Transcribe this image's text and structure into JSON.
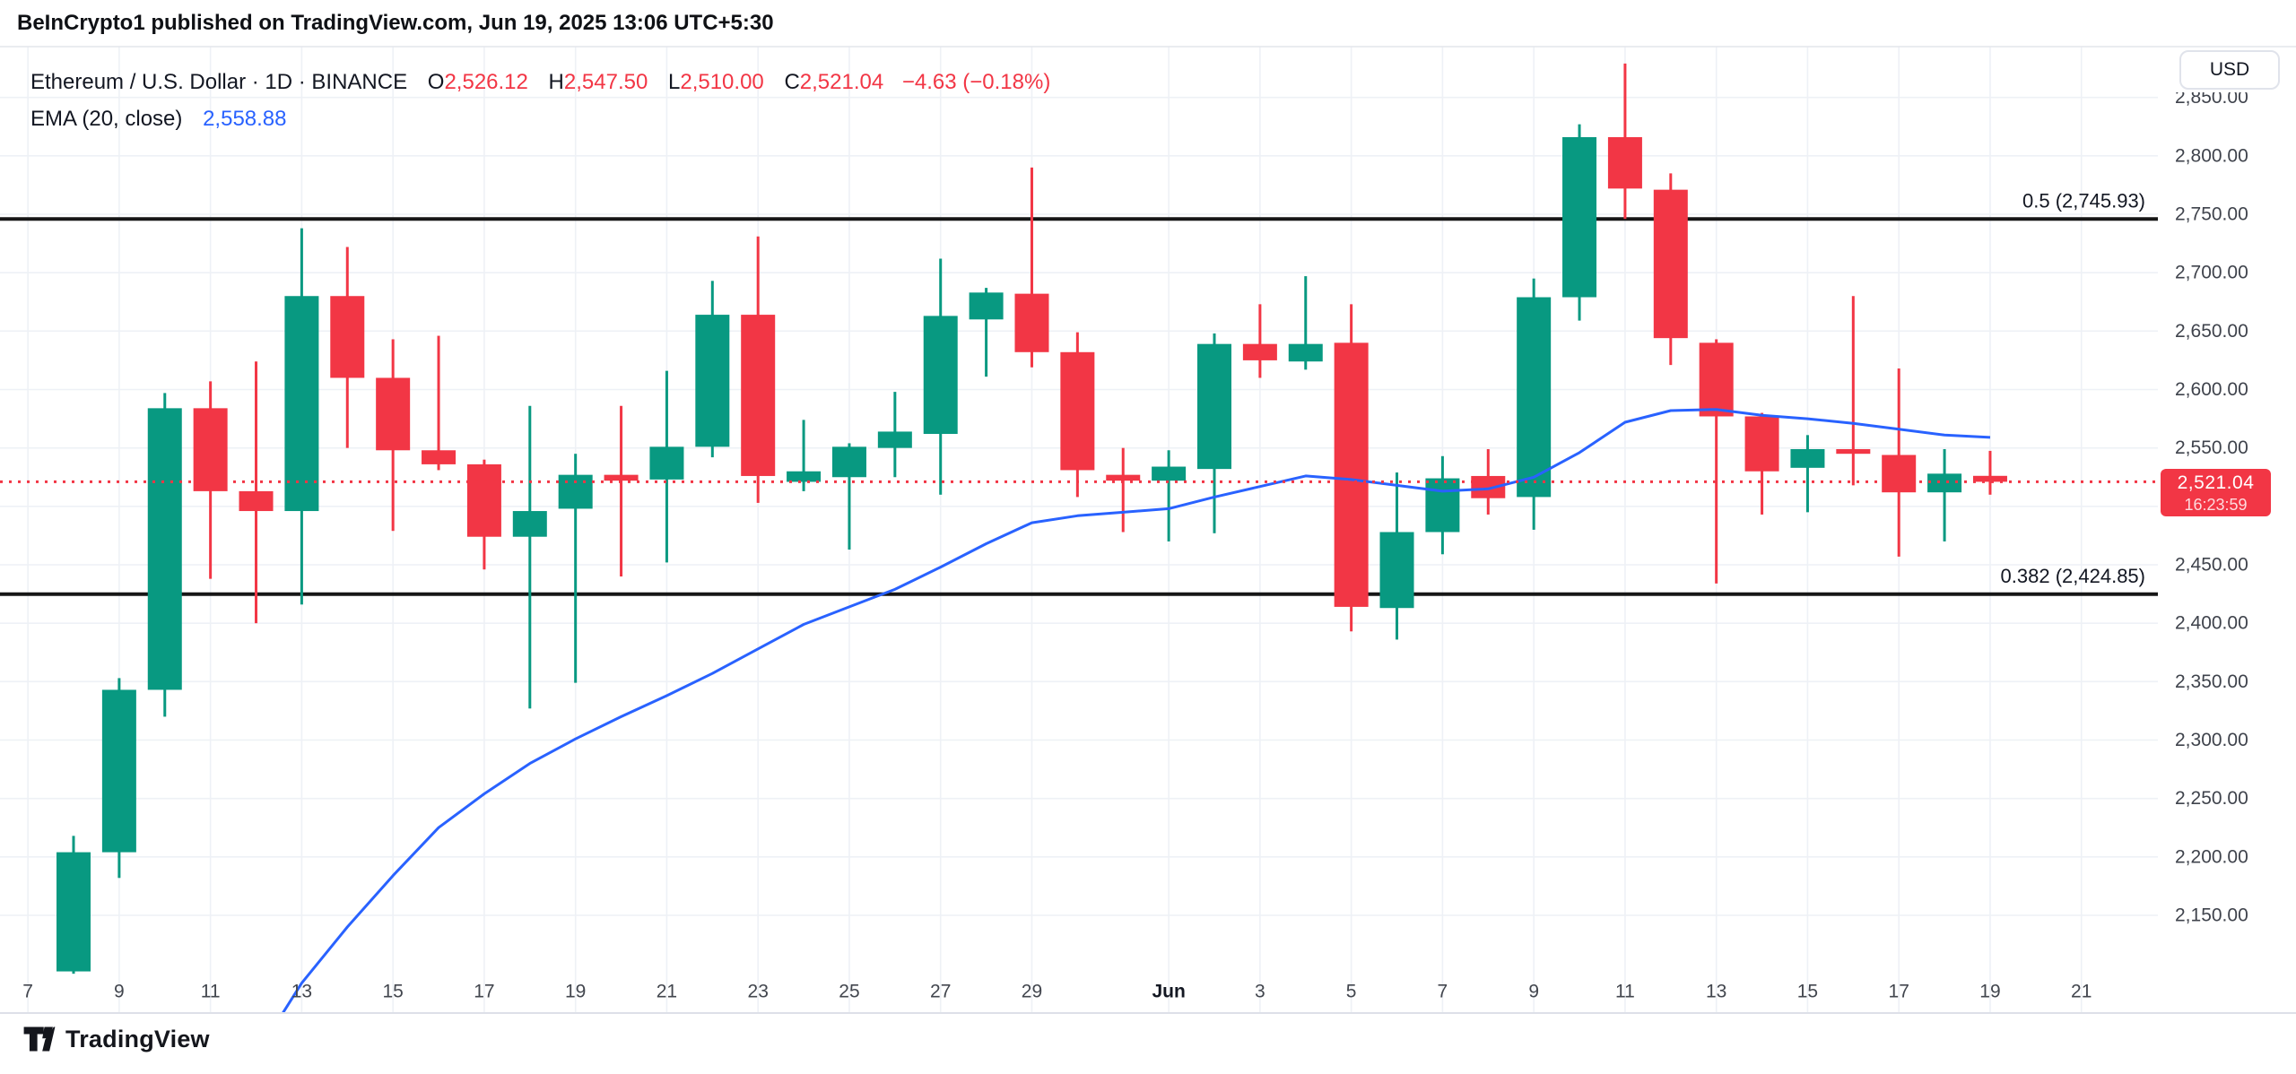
{
  "title_bar": {
    "text": "BeInCrypto1 published on TradingView.com, Jun 19, 2025 13:06 UTC+5:30"
  },
  "legend": {
    "symbol_line": "Ethereum / U.S. Dollar · 1D · BINANCE",
    "ohlc": {
      "open_label": "O",
      "open": "2,526.12",
      "high_label": "H",
      "high": "2,547.50",
      "low_label": "L",
      "low": "2,510.00",
      "close_label": "C",
      "close": "2,521.04",
      "change": "−4.63 (−0.18%)"
    },
    "indicator_label": "EMA (20, close)",
    "indicator_value": "2,558.88"
  },
  "price_axis": {
    "currency_label": "USD",
    "clipped_top_tick": {
      "value": 2850,
      "text": "2,850.00"
    },
    "tick_labels": [
      {
        "value": 2800,
        "text": "2,800.00"
      },
      {
        "value": 2750,
        "text": "2,750.00"
      },
      {
        "value": 2700,
        "text": "2,700.00"
      },
      {
        "value": 2650,
        "text": "2,650.00"
      },
      {
        "value": 2600,
        "text": "2,600.00"
      },
      {
        "value": 2550,
        "text": "2,550.00"
      },
      {
        "value": 2450,
        "text": "2,450.00"
      },
      {
        "value": 2400,
        "text": "2,400.00"
      },
      {
        "value": 2350,
        "text": "2,350.00"
      },
      {
        "value": 2300,
        "text": "2,300.00"
      },
      {
        "value": 2250,
        "text": "2,250.00"
      },
      {
        "value": 2200,
        "text": "2,200.00"
      },
      {
        "value": 2150,
        "text": "2,150.00"
      }
    ],
    "badge": {
      "price": "2,521.04",
      "countdown": "16:23:59"
    }
  },
  "time_axis": {
    "labels": [
      {
        "text": "7",
        "slot": -1
      },
      {
        "text": "9",
        "slot": 1
      },
      {
        "text": "11",
        "slot": 3
      },
      {
        "text": "13",
        "slot": 5
      },
      {
        "text": "15",
        "slot": 7
      },
      {
        "text": "17",
        "slot": 9
      },
      {
        "text": "19",
        "slot": 11
      },
      {
        "text": "21",
        "slot": 13
      },
      {
        "text": "23",
        "slot": 15
      },
      {
        "text": "25",
        "slot": 17
      },
      {
        "text": "27",
        "slot": 19
      },
      {
        "text": "29",
        "slot": 21
      },
      {
        "text": "Jun",
        "slot": 24,
        "bold": true
      },
      {
        "text": "3",
        "slot": 26
      },
      {
        "text": "5",
        "slot": 28
      },
      {
        "text": "7",
        "slot": 30
      },
      {
        "text": "9",
        "slot": 32
      },
      {
        "text": "11",
        "slot": 34
      },
      {
        "text": "13",
        "slot": 36
      },
      {
        "text": "15",
        "slot": 38
      },
      {
        "text": "17",
        "slot": 40
      },
      {
        "text": "19",
        "slot": 42
      },
      {
        "text": "21",
        "slot": 44
      }
    ]
  },
  "footer": {
    "brand": "TradingView"
  },
  "colors": {
    "up": "#089981",
    "down": "#f23645",
    "ema": "#2962ff",
    "fib_line": "#161616",
    "fib_text": "#131722",
    "grid": "#eef1f6",
    "axis_text": "#3f434c",
    "badge_bg": "#f23645",
    "last_price_line": "#f23645",
    "divider": "#e3e6ec"
  },
  "chart_data": {
    "type": "candlestick",
    "title": "Ethereum / U.S. Dollar · 1D · BINANCE",
    "x": [
      "May 8",
      "May 9",
      "May 10",
      "May 11",
      "May 12",
      "May 13",
      "May 14",
      "May 15",
      "May 16",
      "May 17",
      "May 18",
      "May 19",
      "May 20",
      "May 21",
      "May 22",
      "May 23",
      "May 24",
      "May 25",
      "May 26",
      "May 27",
      "May 28",
      "May 29",
      "May 30",
      "May 31",
      "Jun 1",
      "Jun 2",
      "Jun 3",
      "Jun 4",
      "Jun 5",
      "Jun 6",
      "Jun 7",
      "Jun 8",
      "Jun 9",
      "Jun 10",
      "Jun 11",
      "Jun 12",
      "Jun 13",
      "Jun 14",
      "Jun 15",
      "Jun 16",
      "Jun 17",
      "Jun 18",
      "Jun 19"
    ],
    "series": [
      {
        "name": "ETH/USD 1D OHLC",
        "ohlc": [
          [
            2102,
            2218,
            2100,
            2204
          ],
          [
            2204,
            2353,
            2182,
            2343
          ],
          [
            2343,
            2597,
            2320,
            2584
          ],
          [
            2584,
            2607,
            2438,
            2513
          ],
          [
            2513,
            2624,
            2400,
            2496
          ],
          [
            2496,
            2738,
            2416,
            2680
          ],
          [
            2680,
            2722,
            2550,
            2610
          ],
          [
            2610,
            2643,
            2479,
            2548
          ],
          [
            2548,
            2646,
            2531,
            2536
          ],
          [
            2536,
            2540,
            2446,
            2474
          ],
          [
            2474,
            2586,
            2327,
            2496
          ],
          [
            2498,
            2545,
            2349,
            2527
          ],
          [
            2527,
            2586,
            2440,
            2522
          ],
          [
            2523,
            2616,
            2452,
            2551
          ],
          [
            2551,
            2693,
            2542,
            2664
          ],
          [
            2664,
            2731,
            2503,
            2526
          ],
          [
            2521,
            2574,
            2513,
            2530
          ],
          [
            2525,
            2554,
            2463,
            2551
          ],
          [
            2550,
            2598,
            2525,
            2564
          ],
          [
            2562,
            2712,
            2510,
            2663
          ],
          [
            2660,
            2687,
            2611,
            2683
          ],
          [
            2682,
            2790,
            2619,
            2632
          ],
          [
            2632,
            2649,
            2508,
            2531
          ],
          [
            2527,
            2550,
            2478,
            2522
          ],
          [
            2522,
            2548,
            2470,
            2534
          ],
          [
            2532,
            2648,
            2477,
            2639
          ],
          [
            2639,
            2673,
            2610,
            2625
          ],
          [
            2624,
            2697,
            2617,
            2639
          ],
          [
            2640,
            2673,
            2393,
            2414
          ],
          [
            2413,
            2529,
            2386,
            2478
          ],
          [
            2478,
            2543,
            2459,
            2524
          ],
          [
            2526,
            2549,
            2493,
            2507
          ],
          [
            2508,
            2695,
            2480,
            2679
          ],
          [
            2679,
            2827,
            2659,
            2816
          ],
          [
            2816,
            2879,
            2746,
            2772
          ],
          [
            2771,
            2785,
            2621,
            2644
          ],
          [
            2640,
            2643,
            2434,
            2577
          ],
          [
            2577,
            2580,
            2493,
            2530
          ],
          [
            2533,
            2561,
            2495,
            2549
          ],
          [
            2549,
            2680,
            2518,
            2545
          ],
          [
            2544,
            2618,
            2457,
            2512
          ],
          [
            2512,
            2549,
            2470,
            2528
          ],
          [
            2526.12,
            2547.5,
            2510,
            2521.04
          ]
        ]
      },
      {
        "name": "EMA (20, close)",
        "value": 2558.88,
        "points": [
          [
            4,
            2030
          ],
          [
            5,
            2092
          ],
          [
            6,
            2140
          ],
          [
            7,
            2184
          ],
          [
            8,
            2225
          ],
          [
            9,
            2254
          ],
          [
            10,
            2280
          ],
          [
            11,
            2301
          ],
          [
            12,
            2320
          ],
          [
            13,
            2338
          ],
          [
            14,
            2357
          ],
          [
            15,
            2378
          ],
          [
            16,
            2399
          ],
          [
            17,
            2414
          ],
          [
            18,
            2429
          ],
          [
            19,
            2448
          ],
          [
            20,
            2468
          ],
          [
            21,
            2486
          ],
          [
            22,
            2492
          ],
          [
            23,
            2495
          ],
          [
            24,
            2498
          ],
          [
            25,
            2508
          ],
          [
            26,
            2517
          ],
          [
            27,
            2526
          ],
          [
            28,
            2523
          ],
          [
            29,
            2518
          ],
          [
            30,
            2513
          ],
          [
            31,
            2515
          ],
          [
            32,
            2525
          ],
          [
            33,
            2546
          ],
          [
            34,
            2572
          ],
          [
            35,
            2582
          ],
          [
            36,
            2583
          ],
          [
            37,
            2578
          ],
          [
            38,
            2575
          ],
          [
            39,
            2571
          ],
          [
            40,
            2566
          ],
          [
            41,
            2561
          ],
          [
            42,
            2559
          ]
        ]
      }
    ],
    "fib_levels": [
      {
        "label": "0.5 (2,745.93)",
        "price": 2745.93
      },
      {
        "label": "0.382 (2,424.85)",
        "price": 2424.85
      }
    ],
    "last_price": 2521.04,
    "xlabel": "",
    "ylabel": "USD",
    "y_axis": {
      "gridline_prices": [
        2150,
        2200,
        2250,
        2300,
        2350,
        2400,
        2450,
        2500,
        2550,
        2600,
        2650,
        2700,
        2750,
        2800,
        2850
      ],
      "visible_range": [
        2066,
        2896
      ]
    },
    "grid": true,
    "legend_position": "top-left"
  }
}
